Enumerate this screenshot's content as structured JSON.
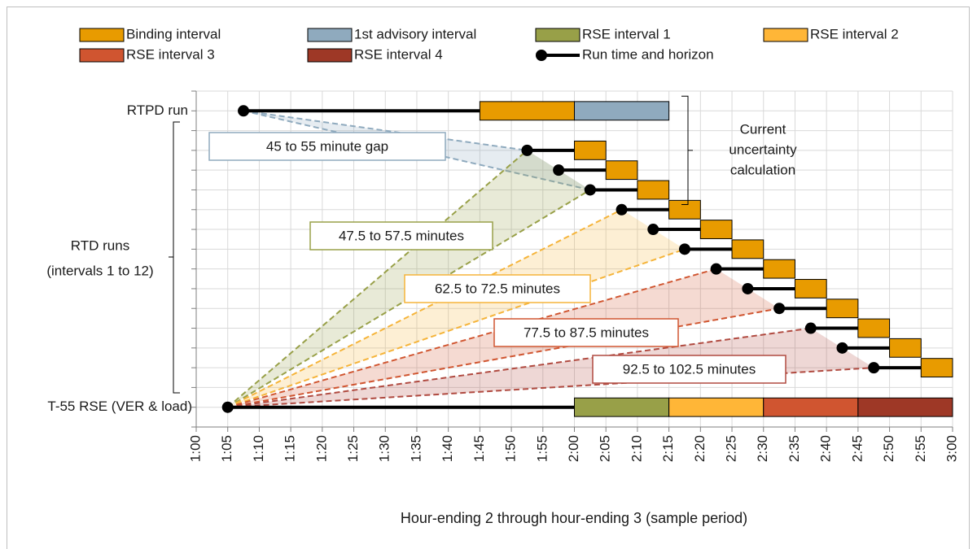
{
  "chart_data": {
    "type": "gantt",
    "x_axis_title": "Hour-ending 2 through hour-ending 3 (sample period)",
    "xlim": [
      0,
      120
    ],
    "ylim": [
      -1,
      16
    ],
    "xticks": [
      {
        "value": 0,
        "label": "1:00"
      },
      {
        "value": 5,
        "label": "1:05"
      },
      {
        "value": 10,
        "label": "1:10"
      },
      {
        "value": 15,
        "label": "1:15"
      },
      {
        "value": 20,
        "label": "1:20"
      },
      {
        "value": 25,
        "label": "1:25"
      },
      {
        "value": 30,
        "label": "1:30"
      },
      {
        "value": 35,
        "label": "1:35"
      },
      {
        "value": 40,
        "label": "1:40"
      },
      {
        "value": 45,
        "label": "1:45"
      },
      {
        "value": 50,
        "label": "1:50"
      },
      {
        "value": 55,
        "label": "1:55"
      },
      {
        "value": 60,
        "label": "2:00"
      },
      {
        "value": 65,
        "label": "2:05"
      },
      {
        "value": 70,
        "label": "2:10"
      },
      {
        "value": 75,
        "label": "2:15"
      },
      {
        "value": 80,
        "label": "2:20"
      },
      {
        "value": 85,
        "label": "2:25"
      },
      {
        "value": 90,
        "label": "2:30"
      },
      {
        "value": 95,
        "label": "2:35"
      },
      {
        "value": 100,
        "label": "2:40"
      },
      {
        "value": 105,
        "label": "2:45"
      },
      {
        "value": 110,
        "label": "2:50"
      },
      {
        "value": 115,
        "label": "2:55"
      },
      {
        "value": 120,
        "label": "3:00"
      }
    ],
    "yticks": [
      -1,
      0,
      1,
      2,
      3,
      4,
      5,
      6,
      7,
      8,
      9,
      10,
      11,
      12,
      13,
      14,
      15,
      16
    ],
    "grid": true,
    "series": [
      {
        "name": "Binding interval",
        "color": "#E89B00"
      },
      {
        "name": "1st advisory interval",
        "color": "#8FAABE"
      },
      {
        "name": "RSE interval 1",
        "color": "#98A048"
      },
      {
        "name": "RSE interval 2",
        "color": "#FFB637"
      },
      {
        "name": "RSE interval 3",
        "color": "#D05530"
      },
      {
        "name": "RSE interval 4",
        "color": "#9E3826"
      },
      {
        "name": "Run time and horizon",
        "color": "#000000"
      }
    ],
    "row_labels": [
      {
        "lines": [
          "RTPD run"
        ],
        "row": 15
      },
      {
        "lines": [
          "RTD runs",
          "(intervals 1 to 12)"
        ],
        "row": 7.5
      },
      {
        "lines": [
          "T-55 RSE (VER & load)"
        ],
        "row": 0
      }
    ],
    "runs": [
      {
        "row": 15,
        "run": 7.5,
        "intervals": [
          {
            "series": 0,
            "start": 45,
            "end": 60
          },
          {
            "series": 1,
            "start": 60,
            "end": 75
          }
        ]
      },
      {
        "row": 13,
        "run": 52.5,
        "intervals": [
          {
            "series": 0,
            "start": 60,
            "end": 65
          }
        ]
      },
      {
        "row": 12,
        "run": 57.5,
        "intervals": [
          {
            "series": 0,
            "start": 65,
            "end": 70
          }
        ]
      },
      {
        "row": 11,
        "run": 62.5,
        "intervals": [
          {
            "series": 0,
            "start": 70,
            "end": 75
          }
        ]
      },
      {
        "row": 10,
        "run": 67.5,
        "intervals": [
          {
            "series": 0,
            "start": 75,
            "end": 80
          }
        ]
      },
      {
        "row": 9,
        "run": 72.5,
        "intervals": [
          {
            "series": 0,
            "start": 80,
            "end": 85
          }
        ]
      },
      {
        "row": 8,
        "run": 77.5,
        "intervals": [
          {
            "series": 0,
            "start": 85,
            "end": 90
          }
        ]
      },
      {
        "row": 7,
        "run": 82.5,
        "intervals": [
          {
            "series": 0,
            "start": 90,
            "end": 95
          }
        ]
      },
      {
        "row": 6,
        "run": 87.5,
        "intervals": [
          {
            "series": 0,
            "start": 95,
            "end": 100
          }
        ]
      },
      {
        "row": 5,
        "run": 92.5,
        "intervals": [
          {
            "series": 0,
            "start": 100,
            "end": 105
          }
        ]
      },
      {
        "row": 4,
        "run": 97.5,
        "intervals": [
          {
            "series": 0,
            "start": 105,
            "end": 110
          }
        ]
      },
      {
        "row": 3,
        "run": 102.5,
        "intervals": [
          {
            "series": 0,
            "start": 110,
            "end": 115
          }
        ]
      },
      {
        "row": 2,
        "run": 107.5,
        "intervals": [
          {
            "series": 0,
            "start": 115,
            "end": 120
          }
        ]
      },
      {
        "row": 0,
        "run": 5,
        "intervals": [
          {
            "series": 2,
            "start": 60,
            "end": 75
          },
          {
            "series": 3,
            "start": 75,
            "end": 90
          },
          {
            "series": 4,
            "start": 90,
            "end": 105
          },
          {
            "series": 5,
            "start": 105,
            "end": 120
          }
        ]
      }
    ],
    "fans": [
      {
        "label": "45 to 55 minute gap",
        "color": "#8FAABE",
        "from": 0,
        "to": [
          1,
          3
        ]
      },
      {
        "label": "47.5 to 57.5 minutes",
        "color": "#98A048",
        "from": 13,
        "to": [
          1,
          3
        ]
      },
      {
        "label": "62.5 to 72.5 minutes",
        "color": "#F5B43A",
        "from": 13,
        "to": [
          4,
          6
        ]
      },
      {
        "label": "77.5 to 87.5 minutes",
        "color": "#D05530",
        "from": 13,
        "to": [
          7,
          9
        ]
      },
      {
        "label": "92.5 to 102.5 minutes",
        "color": "#B04A40",
        "from": 13,
        "to": [
          10,
          12
        ]
      }
    ],
    "bracket_note": {
      "lines": [
        "Current",
        "uncertainty",
        "calculation"
      ],
      "rows": [
        15,
        11
      ]
    }
  }
}
